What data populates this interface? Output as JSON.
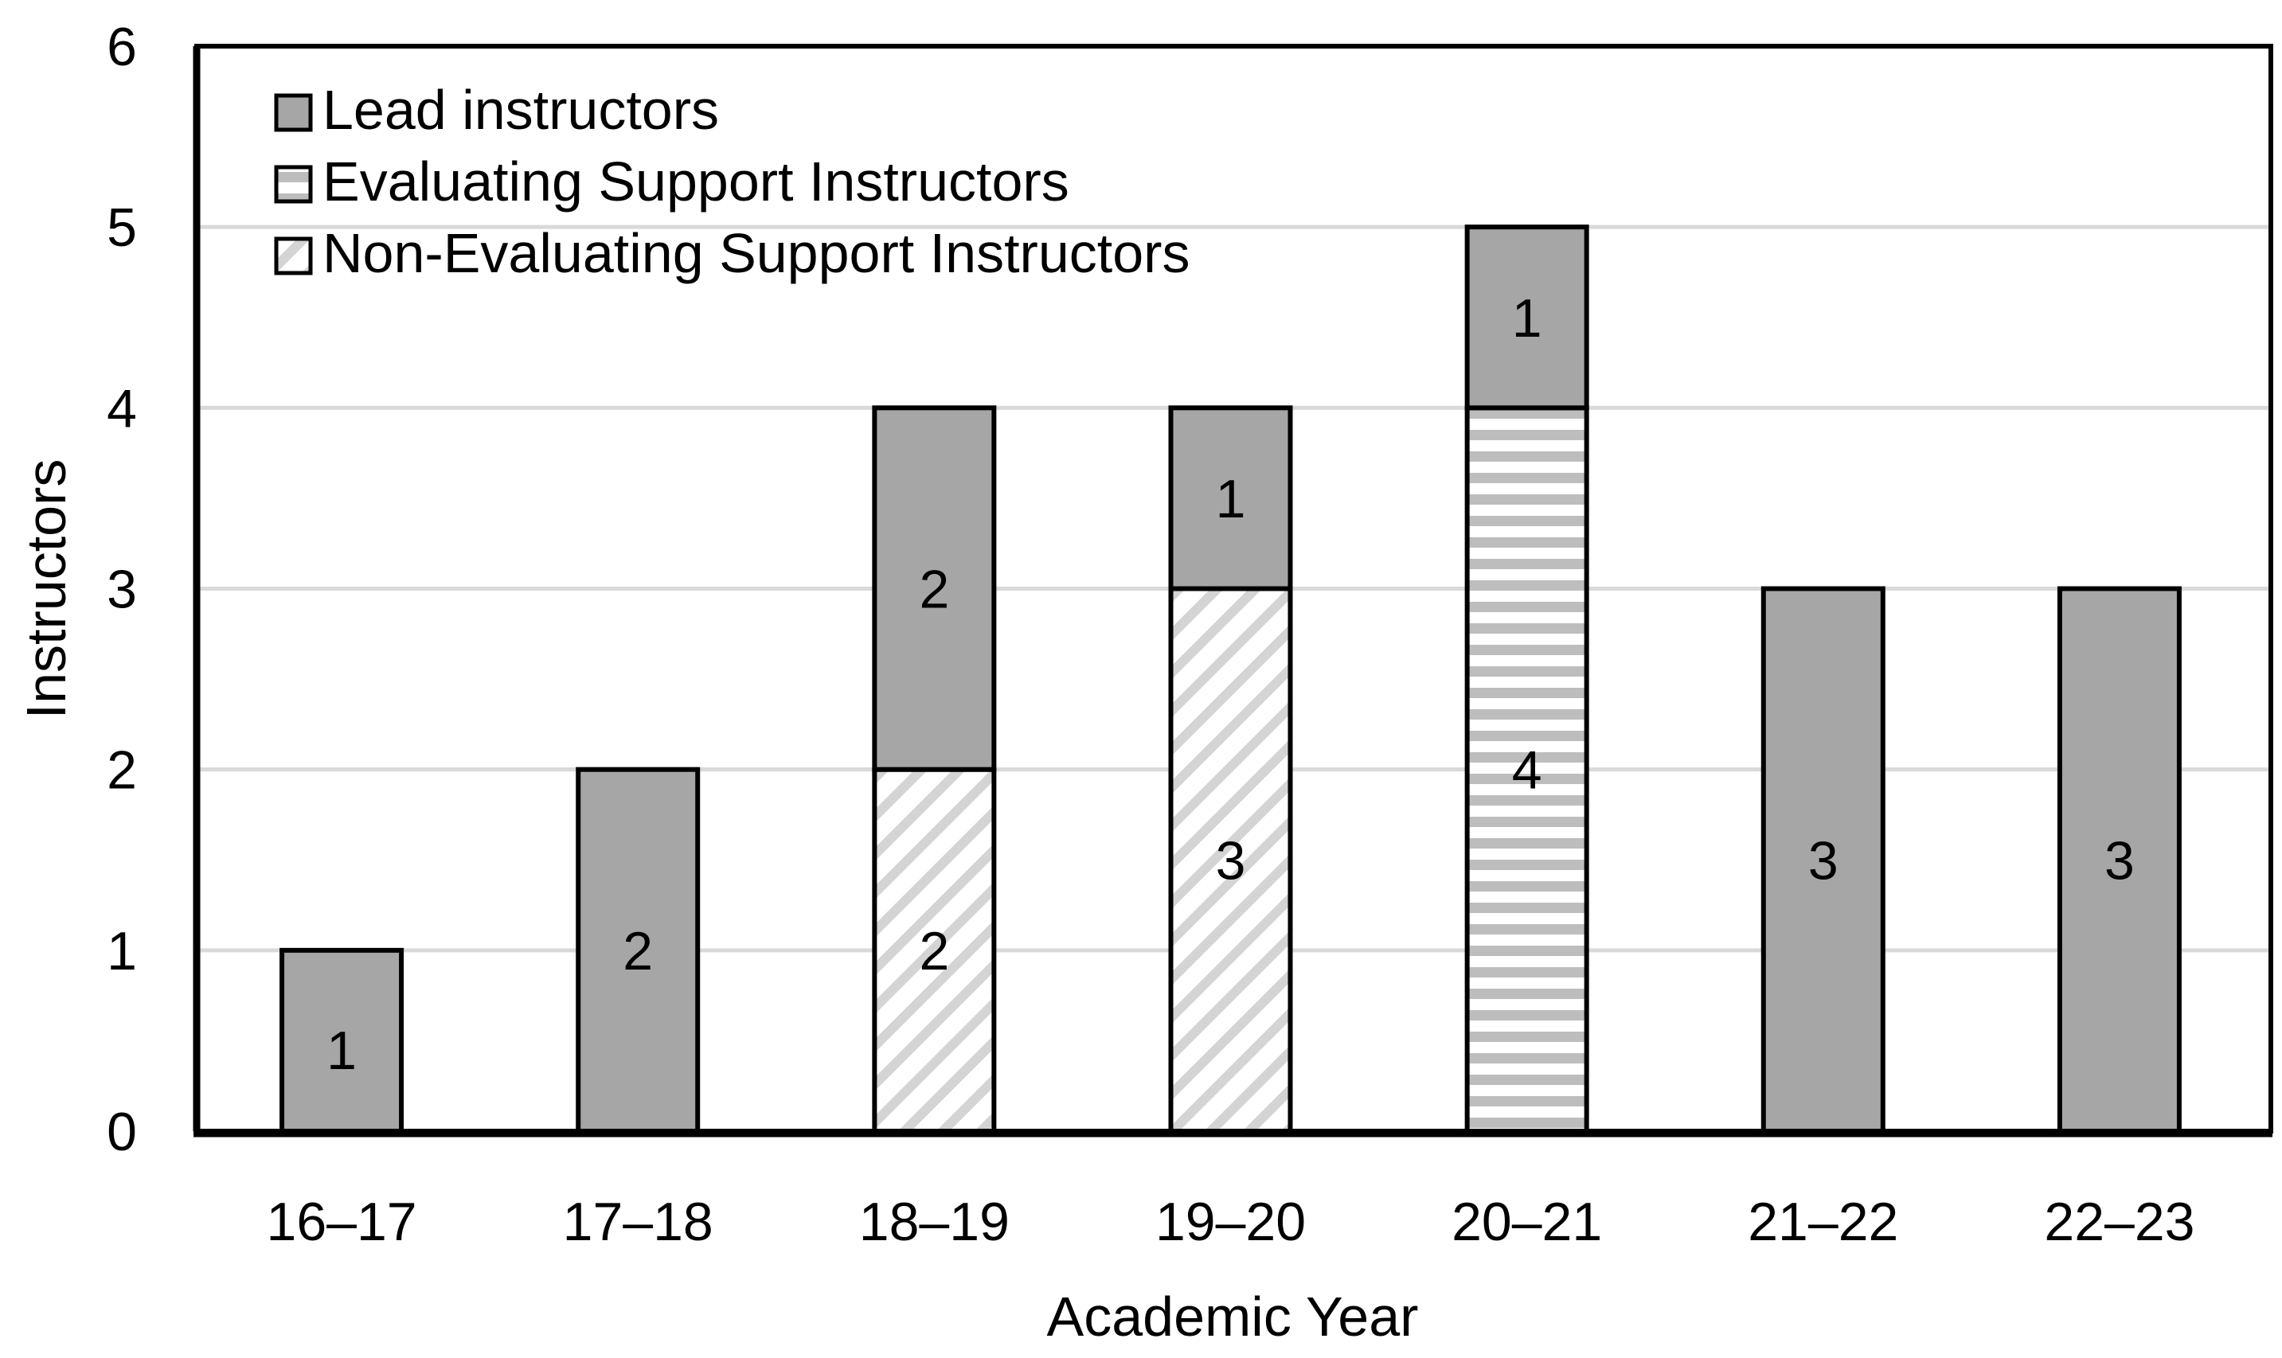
{
  "chart_data": {
    "type": "bar",
    "stacked": true,
    "title": "",
    "xlabel": "Academic Year",
    "ylabel": "Instructors",
    "ylim": [
      0,
      6
    ],
    "yticks": [
      0,
      1,
      2,
      3,
      4,
      5,
      6
    ],
    "grid": true,
    "legend_position": "upper-left inside",
    "categories": [
      "16–17",
      "17–18",
      "18–19",
      "19–20",
      "20–21",
      "21–22",
      "22–23"
    ],
    "series": [
      {
        "name": "Non-Evaluating Support Instructors",
        "pattern": "diagonal-hatch",
        "values": [
          0,
          0,
          2,
          3,
          0,
          0,
          0
        ]
      },
      {
        "name": "Evaluating Support Instructors",
        "pattern": "horizontal-stripes",
        "values": [
          0,
          0,
          0,
          0,
          4,
          0,
          0
        ]
      },
      {
        "name": "Lead instructors",
        "pattern": "solid",
        "values": [
          1,
          2,
          2,
          1,
          1,
          3,
          3
        ]
      }
    ],
    "legend": [
      "Lead instructors",
      "Evaluating Support Instructors",
      "Non-Evaluating Support Instructors"
    ]
  },
  "colors": {
    "lead": "#a6a6a6",
    "stripe": "#bfbfbf",
    "hatch": "#d9d9d9",
    "grid": "#d9d9d9",
    "axis": "#000000"
  }
}
